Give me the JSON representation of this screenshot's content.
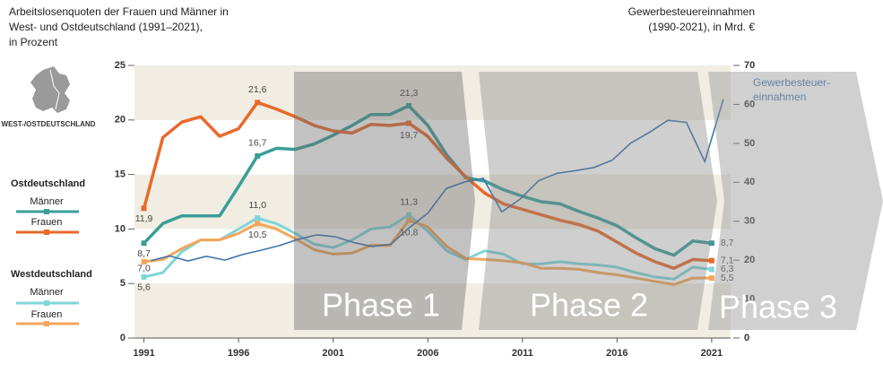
{
  "chart_data": {
    "type": "line",
    "title": [
      "Arbeitslosenquoten der Frauen und Männer in",
      "West- und Ostdeutschland (1991–2021),",
      "in Prozent"
    ],
    "y2_title": [
      "Gewerbesteuereinnahmen",
      "(1990-2021), in Mrd. €"
    ],
    "map_label": "WEST-/OSTDEUTSCHLAND",
    "phases": [
      "Phase 1",
      "Phase 2",
      "Phase 3"
    ],
    "x": [
      1991,
      1992,
      1993,
      1994,
      1995,
      1996,
      1997,
      1998,
      1999,
      2000,
      2001,
      2002,
      2003,
      2004,
      2005,
      2006,
      2007,
      2008,
      2009,
      2010,
      2011,
      2012,
      2013,
      2014,
      2015,
      2016,
      2017,
      2018,
      2019,
      2020,
      2021
    ],
    "xlim": [
      1990.5,
      2022
    ],
    "xticks": [
      1991,
      1996,
      2001,
      2006,
      2011,
      2016,
      2021
    ],
    "ylim": [
      0,
      25
    ],
    "yticks": [
      0,
      5,
      10,
      15,
      20,
      25
    ],
    "y2lim": [
      0,
      70
    ],
    "y2ticks": [
      0,
      10,
      20,
      30,
      40,
      50,
      60,
      70
    ],
    "grid": "bands",
    "series": [
      {
        "group": "Ostdeutschland",
        "name": "Männer",
        "color": "#3a9e98",
        "values": [
          8.7,
          10.5,
          11.2,
          11.2,
          11.2,
          13.9,
          16.7,
          17.4,
          17.3,
          17.8,
          18.6,
          19.5,
          20.5,
          20.5,
          21.3,
          19.5,
          16.8,
          14.7,
          14.4,
          13.6,
          13.0,
          12.5,
          12.3,
          11.6,
          11.0,
          10.3,
          9.2,
          8.2,
          7.6,
          8.9,
          8.7
        ],
        "value_labels": [
          "8,7",
          null,
          null,
          null,
          null,
          null,
          "16,7",
          null,
          null,
          null,
          null,
          null,
          null,
          null,
          "21,3",
          null,
          null,
          null,
          null,
          null,
          null,
          null,
          null,
          null,
          null,
          null,
          null,
          null,
          null,
          null,
          "8,7"
        ]
      },
      {
        "group": "Ostdeutschland",
        "name": "Frauen",
        "color": "#e8692b",
        "values": [
          11.9,
          18.4,
          19.8,
          20.3,
          18.5,
          19.2,
          21.6,
          21.0,
          20.3,
          19.5,
          19.0,
          18.8,
          19.6,
          19.5,
          19.7,
          18.5,
          16.5,
          14.8,
          13.3,
          12.3,
          11.8,
          11.3,
          10.8,
          10.4,
          9.8,
          8.8,
          7.8,
          7.0,
          6.4,
          7.2,
          7.1
        ],
        "value_labels": [
          "11,9",
          null,
          null,
          null,
          null,
          null,
          "21,6",
          null,
          null,
          null,
          null,
          null,
          null,
          null,
          "19,7",
          null,
          null,
          null,
          null,
          null,
          null,
          null,
          null,
          null,
          null,
          null,
          null,
          null,
          null,
          null,
          "7,1"
        ]
      },
      {
        "group": "Westdeutschland",
        "name": "Männer",
        "color": "#7fd6d8",
        "values": [
          5.6,
          6.0,
          7.9,
          9.0,
          9.0,
          10.0,
          11.0,
          10.5,
          9.6,
          8.6,
          8.3,
          9.0,
          10.0,
          10.2,
          11.3,
          9.8,
          8.0,
          7.2,
          8.0,
          7.7,
          6.8,
          6.8,
          7.0,
          6.8,
          6.7,
          6.5,
          6.0,
          5.6,
          5.4,
          6.5,
          6.3
        ],
        "value_labels": [
          "5,6",
          null,
          null,
          null,
          null,
          null,
          "11,0",
          null,
          null,
          null,
          null,
          null,
          null,
          null,
          "11,3",
          null,
          null,
          null,
          null,
          null,
          null,
          null,
          null,
          null,
          null,
          null,
          null,
          null,
          null,
          null,
          "6,3"
        ]
      },
      {
        "group": "Westdeutschland",
        "name": "Frauen",
        "color": "#f2a65a",
        "values": [
          7.0,
          7.2,
          8.2,
          9.0,
          9.0,
          9.6,
          10.5,
          10.0,
          9.1,
          8.1,
          7.7,
          7.8,
          8.5,
          8.5,
          10.8,
          10.2,
          8.4,
          7.3,
          7.2,
          7.1,
          6.9,
          6.4,
          6.4,
          6.3,
          6.0,
          5.8,
          5.5,
          5.2,
          4.9,
          5.5,
          5.5
        ],
        "value_labels": [
          "7,0",
          null,
          null,
          null,
          null,
          null,
          "10,5",
          null,
          null,
          null,
          null,
          null,
          null,
          null,
          "10,8",
          null,
          null,
          null,
          null,
          null,
          null,
          null,
          null,
          null,
          null,
          null,
          null,
          null,
          null,
          null,
          "5,5"
        ]
      },
      {
        "name": [
          "Gewerbesteuer-",
          "einnahmen"
        ],
        "color": "#3d74b0",
        "axis": "y2",
        "x": [
          1990,
          1991,
          1992,
          1993,
          1994,
          1995,
          1996,
          1997,
          1998,
          1999,
          2000,
          2001,
          2002,
          2003,
          2004,
          2005,
          2006,
          2007,
          2008,
          2009,
          2010,
          2011,
          2012,
          2013,
          2014,
          2015,
          2016,
          2017,
          2018,
          2019,
          2020,
          2021
        ],
        "x2lim": [
          1989.1,
          2021.4
        ],
        "values": [
          19.9,
          21.1,
          19.8,
          21.0,
          20.0,
          21.5,
          22.6,
          23.8,
          25.4,
          26.5,
          26.0,
          24.5,
          23.5,
          24.1,
          28.4,
          32.1,
          38.4,
          40.1,
          41.0,
          32.4,
          35.7,
          40.4,
          42.3,
          43.0,
          43.8,
          45.7,
          50.1,
          52.8,
          55.9,
          55.4,
          45.3,
          61.3
        ]
      }
    ]
  }
}
